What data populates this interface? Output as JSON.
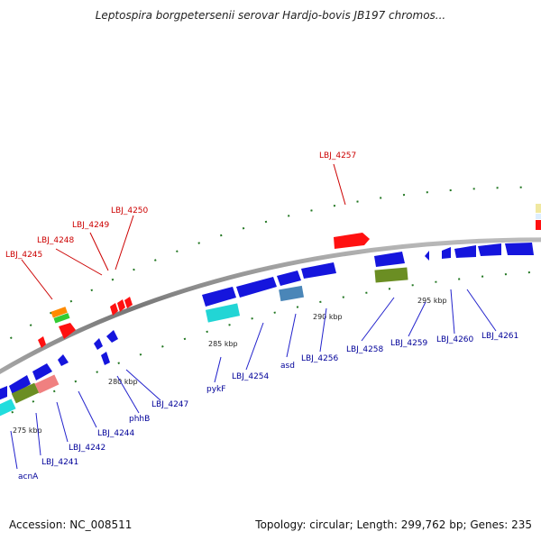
{
  "title": "Leptospira borgpetersenii serovar Hardjo-bovis JB197 chromos...",
  "footer": {
    "accession": "Accession: NC_008511",
    "topology": "Topology: circular; Length: 299,762 bp; Genes: 235"
  },
  "colors": {
    "forward": "#ff0000",
    "reverse": "#0000ff",
    "label_forward": "#cc0000",
    "label_reverse": "#000099",
    "backbone": "#888888",
    "ticks": "#227722"
  },
  "ticks": [
    "275 kbp",
    "280 kbp",
    "285 kbp",
    "290 kbp",
    "295 kbp"
  ],
  "genes_forward": [
    "LBJ_4245",
    "LBJ_4248",
    "LBJ_4249",
    "LBJ_4250",
    "LBJ_4257"
  ],
  "genes_reverse": [
    "acnA",
    "LBJ_4241",
    "LBJ_4242",
    "LBJ_4244",
    "phhB",
    "LBJ_4247",
    "pykF",
    "LBJ_4254",
    "asd",
    "LBJ_4256",
    "LBJ_4258",
    "LBJ_4259",
    "LBJ_4260",
    "LBJ_4261"
  ]
}
